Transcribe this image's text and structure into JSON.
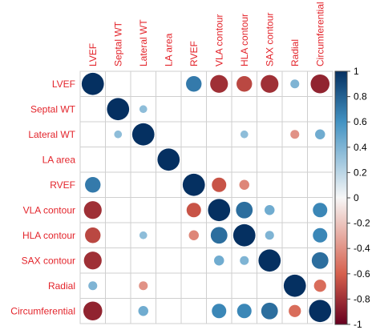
{
  "chart_data": {
    "type": "heatmap",
    "style": "correlation-circle-matrix",
    "variables": [
      "LVEF",
      "Septal WT",
      "Lateral WT",
      "LA area",
      "RVEF",
      "VLA contour",
      "HLA contour",
      "SAX contour",
      "Radial",
      "Circumferential"
    ],
    "matrix": [
      [
        1.0,
        null,
        null,
        null,
        0.7,
        -0.8,
        -0.7,
        -0.8,
        0.4,
        -0.85
      ],
      [
        null,
        1.0,
        0.35,
        null,
        null,
        null,
        null,
        null,
        null,
        null
      ],
      [
        null,
        0.35,
        1.0,
        null,
        null,
        null,
        0.35,
        null,
        -0.4,
        0.45
      ],
      [
        null,
        null,
        null,
        1.0,
        null,
        null,
        null,
        null,
        null,
        null
      ],
      [
        0.7,
        null,
        null,
        null,
        1.0,
        -0.65,
        -0.45,
        null,
        null,
        null
      ],
      [
        -0.8,
        null,
        null,
        null,
        -0.65,
        1.0,
        0.75,
        0.45,
        null,
        0.65
      ],
      [
        -0.7,
        null,
        0.35,
        null,
        -0.45,
        0.75,
        1.0,
        0.4,
        null,
        0.65
      ],
      [
        -0.8,
        null,
        null,
        null,
        null,
        0.45,
        0.4,
        1.0,
        null,
        0.75
      ],
      [
        0.4,
        null,
        -0.4,
        null,
        null,
        null,
        null,
        null,
        1.0,
        -0.55
      ],
      [
        -0.85,
        null,
        0.45,
        null,
        null,
        0.65,
        0.65,
        0.75,
        -0.55,
        1.0
      ]
    ],
    "legend": {
      "placement": "right",
      "ticks": [
        "1",
        "0.8",
        "0.6",
        "0.4",
        "0.2",
        "0",
        "-0.2",
        "-0.4",
        "-0.6",
        "-0.8",
        "-1"
      ],
      "range": [
        -1,
        1
      ]
    },
    "colors": {
      "positive_strong": "#053061",
      "positive_mid": "#4393c3",
      "neutral": "#f7f7f7",
      "negative_mid": "#d6604d",
      "negative_strong": "#67001f",
      "label": "#e3242b",
      "grid": "#cfcfcf"
    }
  }
}
